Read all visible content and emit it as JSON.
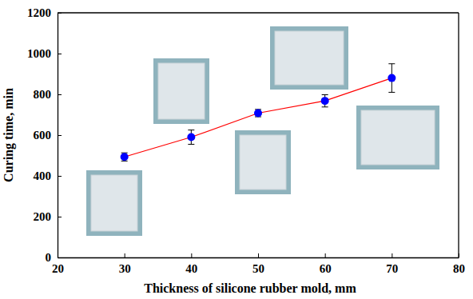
{
  "chart_data": {
    "type": "line",
    "x_label": "Thickness of silicone rubber mold, mm",
    "y_label": "Curing time, min",
    "x": [
      30,
      40,
      50,
      60,
      70
    ],
    "values": [
      493,
      590,
      708,
      768,
      880
    ],
    "errors": [
      20,
      35,
      18,
      30,
      70
    ],
    "color": "#ff0000",
    "marker": "circle",
    "xlim": [
      20,
      80
    ],
    "xticks": [
      20,
      30,
      40,
      50,
      60,
      70,
      80
    ],
    "ylim": [
      0,
      1200
    ],
    "yticks": [
      0,
      200,
      400,
      600,
      800,
      1000,
      1200
    ],
    "grid": false
  }
}
